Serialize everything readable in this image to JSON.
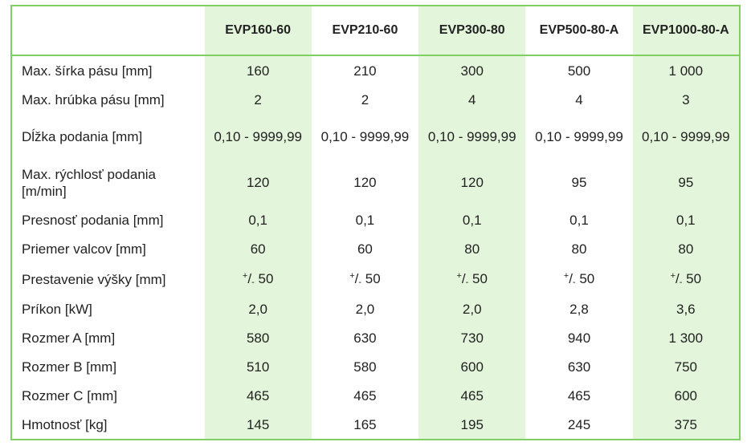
{
  "headers": [
    "",
    "EVP160-60",
    "EVP210-60",
    "EVP300-80",
    "EVP500-80-A",
    "EVP1000-80-A"
  ],
  "rows": [
    {
      "label": "Max. šírka pásu [mm]",
      "values": [
        "160",
        "210",
        "300",
        "500",
        "1 000"
      ]
    },
    {
      "label": "Max. hrúbka pásu [mm]",
      "values": [
        "2",
        "2",
        "4",
        "4",
        "3"
      ]
    },
    {
      "label": "Dĺžka podania [mm]",
      "values": [
        "0,10 - 9999,99",
        "0,10 - 9999,99",
        "0,10 - 9999,99",
        "0,10 - 9999,99",
        "0,10 - 9999,99"
      ]
    },
    {
      "label": "Max. rýchlosť podania [m/min]",
      "values": [
        "120",
        "120",
        "120",
        "95",
        "95"
      ]
    },
    {
      "label": "Presnosť podania [mm]",
      "values": [
        "0,1",
        "0,1",
        "0,1",
        "0,1",
        "0,1"
      ]
    },
    {
      "label": "Priemer valcov [mm]",
      "values": [
        "60",
        "60",
        "80",
        "80",
        "80"
      ]
    },
    {
      "label": "Prestavenie výšky [mm]",
      "values": [
        "+/- 50",
        "+/- 50",
        "+/- 50",
        "+/- 50",
        "+/- 50"
      ]
    },
    {
      "label": "Príkon [kW]",
      "values": [
        "2,0",
        "2,0",
        "2,0",
        "2,8",
        "3,6"
      ]
    },
    {
      "label": "Rozmer A [mm]",
      "values": [
        "580",
        "630",
        "730",
        "940",
        "1 300"
      ]
    },
    {
      "label": "Rozmer B [mm]",
      "values": [
        "510",
        "580",
        "600",
        "630",
        "750"
      ]
    },
    {
      "label": "Rozmer C [mm]",
      "values": [
        "465",
        "465",
        "465",
        "465",
        "600"
      ]
    },
    {
      "label": "Hmotnosť [kg]",
      "values": [
        "145",
        "165",
        "195",
        "245",
        "375"
      ]
    }
  ],
  "height_adjust": {
    "plus": "+",
    "slash": "/",
    "minus": "-",
    "amount": "50"
  },
  "colors": {
    "border": "#7fcf62",
    "shade": "#e3f5da"
  }
}
